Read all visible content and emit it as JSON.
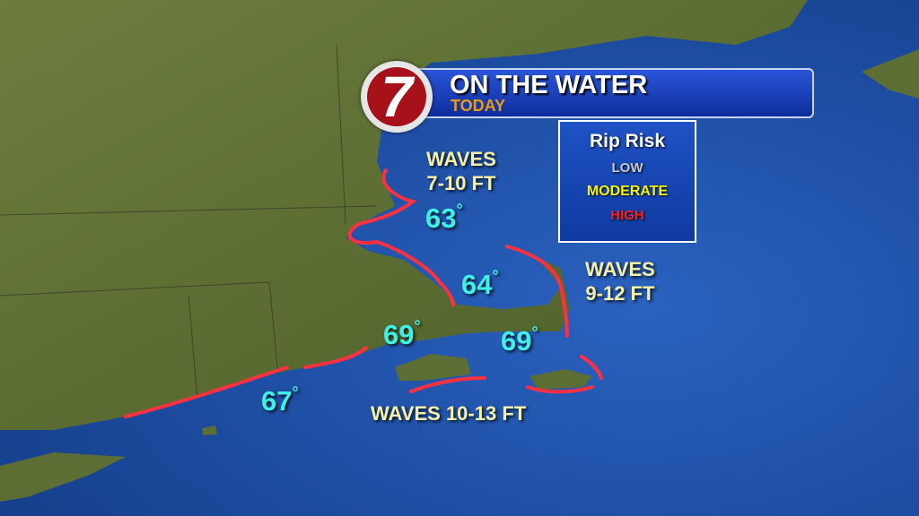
{
  "header": {
    "title": "ON THE WATER",
    "subtitle": "TODAY",
    "logo_text": "7"
  },
  "rip_risk": {
    "title": "Rip Risk",
    "levels": [
      {
        "label": "LOW",
        "color": "#c9c9c9"
      },
      {
        "label": "MODERATE",
        "color": "#f5f500"
      },
      {
        "label": "HIGH",
        "color": "#ff1f1f"
      }
    ]
  },
  "waves": {
    "north": [
      "WAVES",
      "7-10 FT"
    ],
    "east": [
      "WAVES",
      "9-12 FT"
    ],
    "south": "WAVES 10-13 FT"
  },
  "temps": [
    "63",
    "64",
    "69",
    "69",
    "67"
  ],
  "degree": "°",
  "colors": {
    "land": "#5d6e35",
    "water": "#1d4fa0",
    "risk_line": "#ff3040",
    "temp": "#3ff0e8",
    "waves": "#f7f0a8"
  }
}
